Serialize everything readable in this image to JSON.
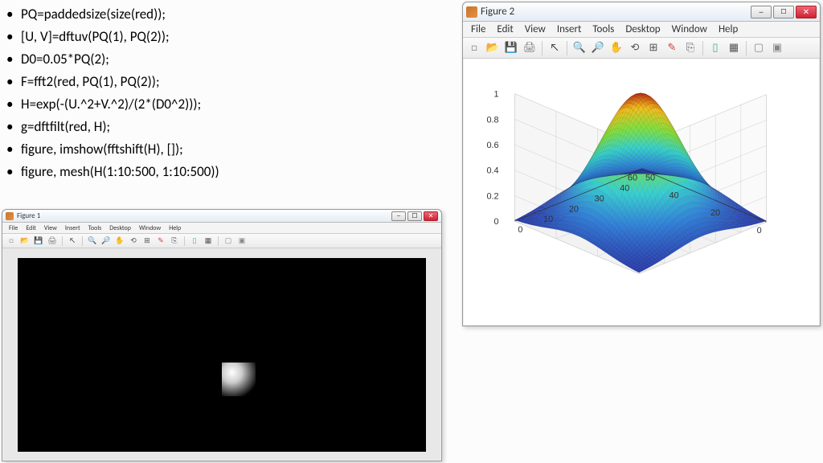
{
  "code": {
    "lines": [
      "PQ=paddedsize(size(red));",
      "[U, V]=dftuv(PQ(1), PQ(2));",
      "D0=0.05*PQ(2);",
      "F=fft2(red, PQ(1), PQ(2));",
      "H=exp(-(U.^2+V.^2)/(2*(D0^2)));",
      "g=dftfilt(red, H);",
      "figure, imshow(fftshift(H), []);",
      "figure, mesh(H(1:10:500, 1:10:500))"
    ]
  },
  "menus": [
    "File",
    "Edit",
    "View",
    "Insert",
    "Tools",
    "Desktop",
    "Window",
    "Help"
  ],
  "toolbar_icons": [
    {
      "name": "new-icon",
      "glyph": "□",
      "color": "#888"
    },
    {
      "name": "open-icon",
      "glyph": "📂",
      "color": "#d9a441"
    },
    {
      "name": "save-icon",
      "glyph": "💾",
      "color": "#5577cc"
    },
    {
      "name": "print-icon",
      "glyph": "🖨",
      "color": "#777"
    },
    {
      "name": "sep"
    },
    {
      "name": "pointer-icon",
      "glyph": "↖",
      "color": "#333"
    },
    {
      "name": "sep"
    },
    {
      "name": "zoomin-icon",
      "glyph": "🔍",
      "color": "#666"
    },
    {
      "name": "zoomout-icon",
      "glyph": "🔎",
      "color": "#666"
    },
    {
      "name": "pan-icon",
      "glyph": "✋",
      "color": "#d9a441"
    },
    {
      "name": "rotate-icon",
      "glyph": "⟲",
      "color": "#555"
    },
    {
      "name": "datacursor-icon",
      "glyph": "⊞",
      "color": "#555"
    },
    {
      "name": "brush-icon",
      "glyph": "✎",
      "color": "#c44"
    },
    {
      "name": "link-icon",
      "glyph": "⎘",
      "color": "#555"
    },
    {
      "name": "sep"
    },
    {
      "name": "colorbar-icon",
      "glyph": "▯",
      "color": "#4a8"
    },
    {
      "name": "legend-icon",
      "glyph": "▦",
      "color": "#555"
    },
    {
      "name": "sep"
    },
    {
      "name": "hideplot-icon",
      "glyph": "▢",
      "color": "#888"
    },
    {
      "name": "showplot-icon",
      "glyph": "▣",
      "color": "#888"
    }
  ],
  "figure1": {
    "title": "Figure 1"
  },
  "figure2": {
    "title": "Figure 2",
    "mesh": {
      "type": "mesh3d",
      "z_ticks": [
        "0",
        "0.2",
        "0.4",
        "0.6",
        "0.8",
        "1"
      ],
      "x_ticks": [
        "0",
        "10",
        "20",
        "30",
        "40",
        "50"
      ],
      "y_ticks": [
        "0",
        "20",
        "40",
        "60"
      ],
      "xlim": [
        0,
        50
      ],
      "ylim": [
        0,
        60
      ],
      "zlim": [
        0,
        1
      ],
      "colormap_stops": [
        {
          "v": 0.0,
          "c": "#2838a8"
        },
        {
          "v": 0.2,
          "c": "#2f7fd8"
        },
        {
          "v": 0.4,
          "c": "#36d0d0"
        },
        {
          "v": 0.6,
          "c": "#7fe040"
        },
        {
          "v": 0.8,
          "c": "#f0c020"
        },
        {
          "v": 1.0,
          "c": "#b01810"
        }
      ],
      "background_color": "#ffffff",
      "grid_color": "#cccccc",
      "axis_color": "#333333",
      "label_fontsize": 11
    }
  }
}
